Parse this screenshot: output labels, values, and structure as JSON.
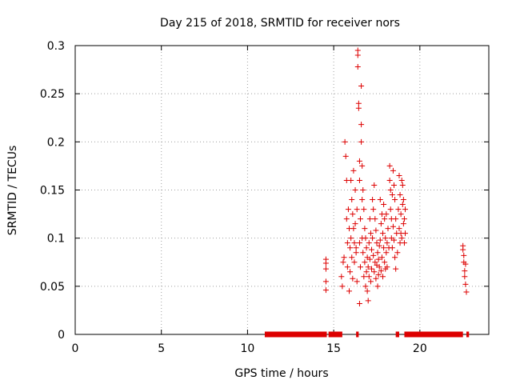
{
  "chart_data": {
    "type": "scatter",
    "title": "Day 215 of 2018, SRMTID for receiver nors",
    "xlabel": "GPS time / hours",
    "ylabel": "SRMTID / TECUs",
    "xlim": [
      0,
      24
    ],
    "ylim": [
      0,
      0.3
    ],
    "xticks": [
      0,
      5,
      10,
      15,
      20
    ],
    "yticks": [
      0,
      0.05,
      0.1,
      0.15,
      0.2,
      0.25,
      0.3
    ],
    "xtick_labels": [
      "0",
      "5",
      "10",
      "15",
      "20"
    ],
    "ytick_labels": [
      "0",
      "0.05",
      "0.1",
      "0.15",
      "0.2",
      "0.25",
      "0.3"
    ],
    "grid": true,
    "marker": "+",
    "series_color": "#dd0000",
    "zero_segments": [
      [
        11.0,
        14.6
      ],
      [
        14.7,
        15.5
      ],
      [
        16.3,
        16.45
      ],
      [
        18.6,
        18.8
      ],
      [
        19.1,
        22.5
      ],
      [
        22.7,
        22.85
      ]
    ],
    "points": [
      [
        14.55,
        0.078
      ],
      [
        14.55,
        0.074
      ],
      [
        14.55,
        0.068
      ],
      [
        14.55,
        0.055
      ],
      [
        14.55,
        0.046
      ],
      [
        15.45,
        0.06
      ],
      [
        15.5,
        0.05
      ],
      [
        15.55,
        0.075
      ],
      [
        15.6,
        0.08
      ],
      [
        15.65,
        0.2
      ],
      [
        15.7,
        0.185
      ],
      [
        15.75,
        0.12
      ],
      [
        15.75,
        0.16
      ],
      [
        15.8,
        0.095
      ],
      [
        15.8,
        0.07
      ],
      [
        15.85,
        0.13
      ],
      [
        15.9,
        0.11
      ],
      [
        15.9,
        0.045
      ],
      [
        15.95,
        0.09
      ],
      [
        15.95,
        0.065
      ],
      [
        16.0,
        0.16
      ],
      [
        16.0,
        0.1
      ],
      [
        16.05,
        0.14
      ],
      [
        16.05,
        0.08
      ],
      [
        16.1,
        0.125
      ],
      [
        16.1,
        0.058
      ],
      [
        16.15,
        0.11
      ],
      [
        16.15,
        0.17
      ],
      [
        16.2,
        0.095
      ],
      [
        16.2,
        0.075
      ],
      [
        16.25,
        0.15
      ],
      [
        16.25,
        0.115
      ],
      [
        16.3,
        0.085
      ],
      [
        16.3,
        0.09
      ],
      [
        16.35,
        0.13
      ],
      [
        16.35,
        0.055
      ],
      [
        16.4,
        0.295
      ],
      [
        16.4,
        0.29
      ],
      [
        16.4,
        0.278
      ],
      [
        16.45,
        0.24
      ],
      [
        16.45,
        0.235
      ],
      [
        16.5,
        0.18
      ],
      [
        16.5,
        0.16
      ],
      [
        16.5,
        0.095
      ],
      [
        16.5,
        0.032
      ],
      [
        16.55,
        0.12
      ],
      [
        16.55,
        0.07
      ],
      [
        16.6,
        0.258
      ],
      [
        16.6,
        0.218
      ],
      [
        16.6,
        0.2
      ],
      [
        16.65,
        0.175
      ],
      [
        16.65,
        0.14
      ],
      [
        16.65,
        0.1
      ],
      [
        16.7,
        0.15
      ],
      [
        16.7,
        0.085
      ],
      [
        16.75,
        0.13
      ],
      [
        16.75,
        0.06
      ],
      [
        16.8,
        0.11
      ],
      [
        16.8,
        0.075
      ],
      [
        16.85,
        0.1
      ],
      [
        16.85,
        0.05
      ],
      [
        16.9,
        0.09
      ],
      [
        16.9,
        0.065
      ],
      [
        16.95,
        0.08
      ],
      [
        16.95,
        0.045
      ],
      [
        17.0,
        0.07
      ],
      [
        17.0,
        0.035
      ],
      [
        17.05,
        0.095
      ],
      [
        17.05,
        0.06
      ],
      [
        17.1,
        0.12
      ],
      [
        17.1,
        0.078
      ],
      [
        17.15,
        0.105
      ],
      [
        17.15,
        0.055
      ],
      [
        17.2,
        0.088
      ],
      [
        17.2,
        0.068
      ],
      [
        17.25,
        0.14
      ],
      [
        17.25,
        0.1
      ],
      [
        17.3,
        0.13
      ],
      [
        17.3,
        0.082
      ],
      [
        17.35,
        0.155
      ],
      [
        17.35,
        0.065
      ],
      [
        17.4,
        0.12
      ],
      [
        17.4,
        0.075
      ],
      [
        17.45,
        0.108
      ],
      [
        17.45,
        0.058
      ],
      [
        17.5,
        0.095
      ],
      [
        17.5,
        0.072
      ],
      [
        17.55,
        0.085
      ],
      [
        17.55,
        0.05
      ],
      [
        17.6,
        0.078
      ],
      [
        17.6,
        0.062
      ],
      [
        17.65,
        0.092
      ],
      [
        17.65,
        0.07
      ],
      [
        17.7,
        0.14
      ],
      [
        17.7,
        0.098
      ],
      [
        17.75,
        0.115
      ],
      [
        17.75,
        0.066
      ],
      [
        17.8,
        0.125
      ],
      [
        17.8,
        0.08
      ],
      [
        17.85,
        0.105
      ],
      [
        17.85,
        0.06
      ],
      [
        17.9,
        0.135
      ],
      [
        17.9,
        0.09
      ],
      [
        17.95,
        0.12
      ],
      [
        17.95,
        0.075
      ],
      [
        18.0,
        0.1
      ],
      [
        18.0,
        0.068
      ],
      [
        18.05,
        0.125
      ],
      [
        18.05,
        0.085
      ],
      [
        18.1,
        0.095
      ],
      [
        18.1,
        0.07
      ],
      [
        18.15,
        0.11
      ],
      [
        18.2,
        0.09
      ],
      [
        18.25,
        0.175
      ],
      [
        18.25,
        0.16
      ],
      [
        18.3,
        0.15
      ],
      [
        18.3,
        0.13
      ],
      [
        18.35,
        0.12
      ],
      [
        18.35,
        0.1
      ],
      [
        18.4,
        0.145
      ],
      [
        18.4,
        0.09
      ],
      [
        18.45,
        0.17
      ],
      [
        18.45,
        0.112
      ],
      [
        18.5,
        0.155
      ],
      [
        18.5,
        0.098
      ],
      [
        18.55,
        0.14
      ],
      [
        18.55,
        0.08
      ],
      [
        18.6,
        0.12
      ],
      [
        18.6,
        0.068
      ],
      [
        18.65,
        0.105
      ],
      [
        18.7,
        0.085
      ],
      [
        18.75,
        0.13
      ],
      [
        18.8,
        0.165
      ],
      [
        18.8,
        0.11
      ],
      [
        18.85,
        0.145
      ],
      [
        18.85,
        0.095
      ],
      [
        18.9,
        0.125
      ],
      [
        18.9,
        0.105
      ],
      [
        18.95,
        0.16
      ],
      [
        18.95,
        0.1
      ],
      [
        19.0,
        0.155
      ],
      [
        19.0,
        0.135
      ],
      [
        19.05,
        0.14
      ],
      [
        19.05,
        0.115
      ],
      [
        19.1,
        0.12
      ],
      [
        19.1,
        0.095
      ],
      [
        19.15,
        0.13
      ],
      [
        19.15,
        0.105
      ],
      [
        22.5,
        0.092
      ],
      [
        22.5,
        0.088
      ],
      [
        22.55,
        0.082
      ],
      [
        22.55,
        0.075
      ],
      [
        22.6,
        0.066
      ],
      [
        22.6,
        0.06
      ],
      [
        22.65,
        0.073
      ],
      [
        22.65,
        0.052
      ],
      [
        22.7,
        0.044
      ]
    ]
  }
}
